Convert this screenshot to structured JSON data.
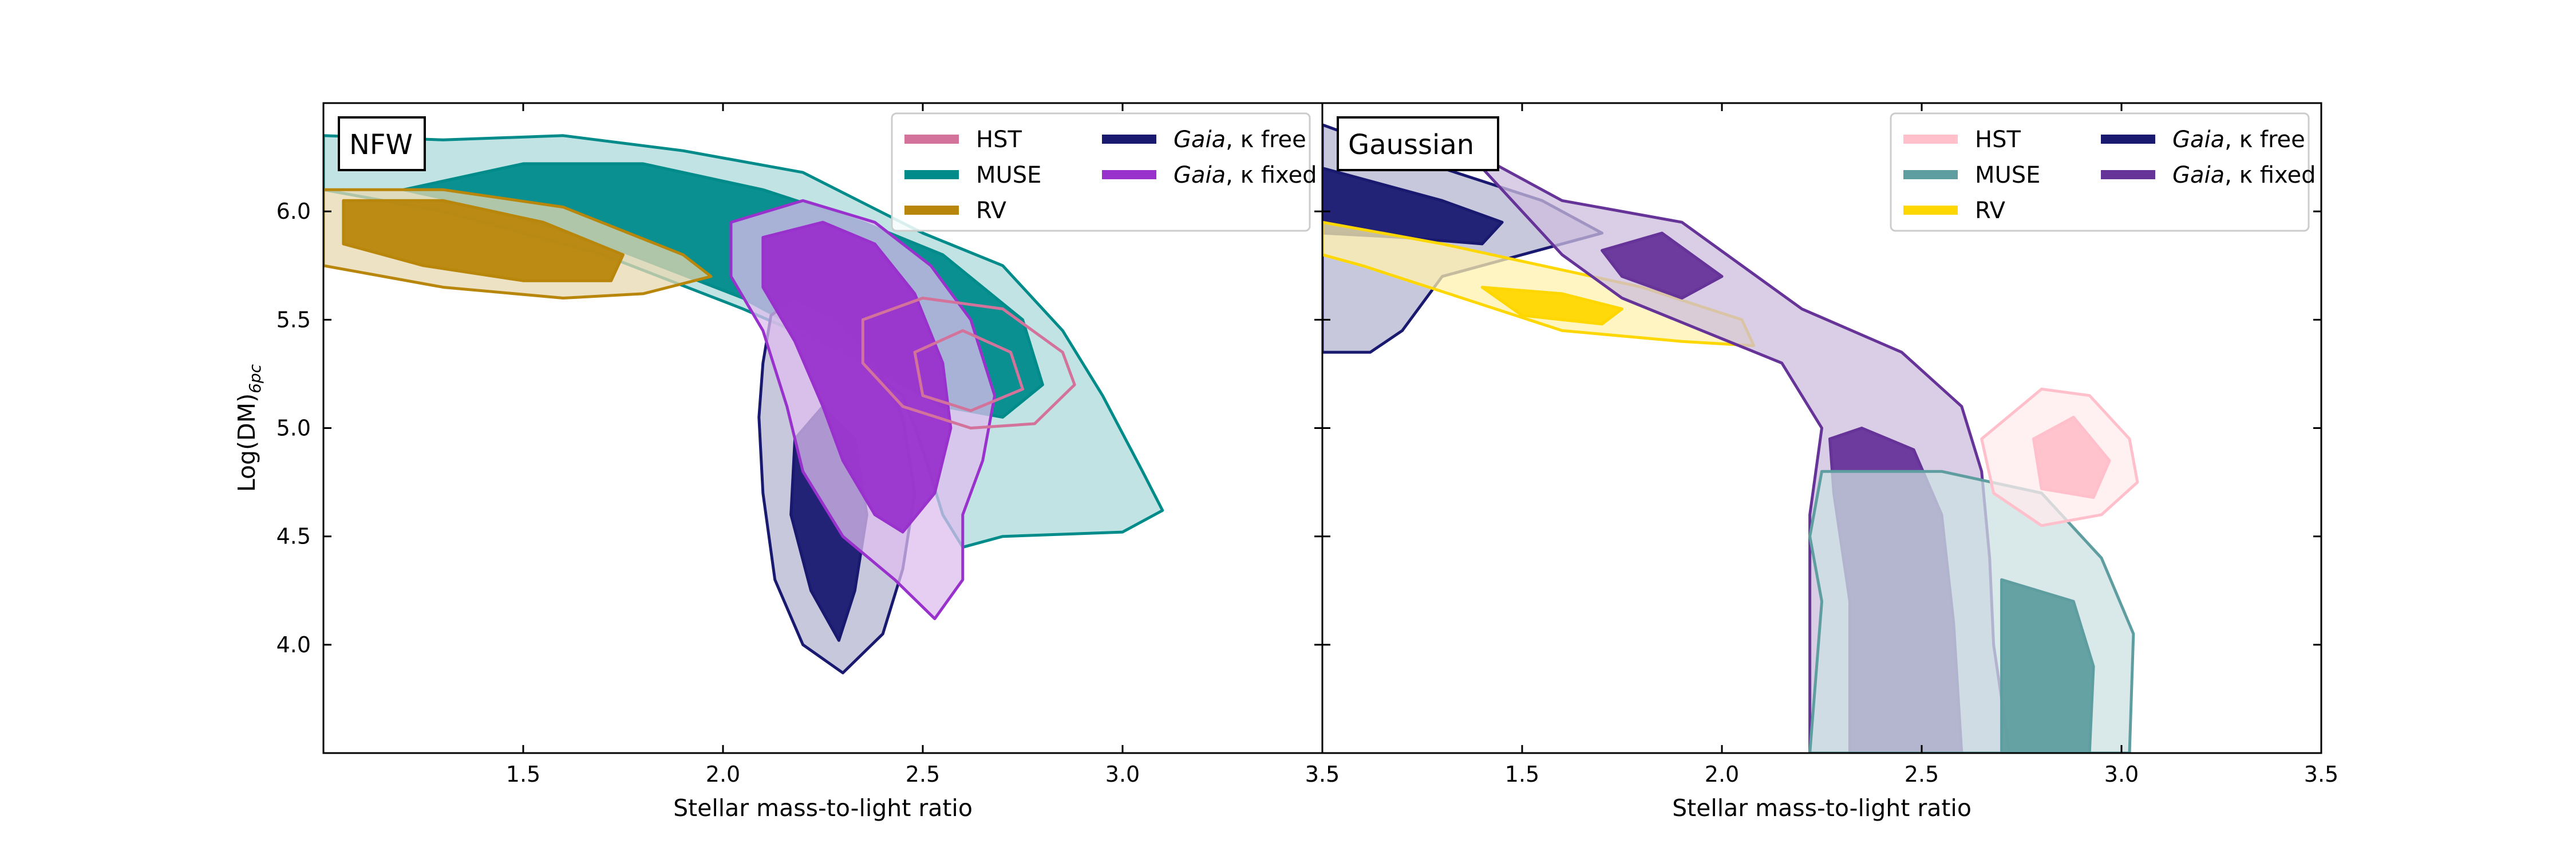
{
  "chart_data": [
    {
      "type": "contour",
      "title": "NFW",
      "xlabel": "Stellar mass-to-light ratio",
      "ylabel": "Log(DM)",
      "ylabel_sub": "6pc",
      "xlim": [
        1.0,
        3.5
      ],
      "ylim": [
        3.5,
        6.5
      ],
      "xticks": [
        "1.5",
        "2.0",
        "2.5",
        "3.0",
        "3.5"
      ],
      "yticks": [
        "4.0",
        "4.5",
        "5.0",
        "5.5",
        "6.0"
      ],
      "grid": false,
      "legend": {
        "position": "top-right",
        "columns": 2,
        "entries": [
          {
            "label": "HST",
            "color": "#d3739b",
            "italic_prefix": ""
          },
          {
            "label": "MUSE",
            "color": "#008b8b",
            "italic_prefix": ""
          },
          {
            "label": "RV",
            "color": "#b8860b",
            "italic_prefix": ""
          },
          {
            "label": ", κ free",
            "color": "#191970",
            "italic_prefix": "Gaia"
          },
          {
            "label": ", κ fixed",
            "color": "#9932cc",
            "italic_prefix": "Gaia"
          }
        ]
      },
      "series": [
        {
          "name": "MUSE",
          "color": "#008b8b",
          "filled": true,
          "outer": [
            [
              1.0,
              6.35
            ],
            [
              1.3,
              6.33
            ],
            [
              1.6,
              6.35
            ],
            [
              1.9,
              6.28
            ],
            [
              2.2,
              6.18
            ],
            [
              2.5,
              5.9
            ],
            [
              2.7,
              5.75
            ],
            [
              2.85,
              5.45
            ],
            [
              2.95,
              5.15
            ],
            [
              3.05,
              4.8
            ],
            [
              3.1,
              4.62
            ],
            [
              3.0,
              4.52
            ],
            [
              2.7,
              4.5
            ],
            [
              2.6,
              4.45
            ],
            [
              2.55,
              4.6
            ],
            [
              2.5,
              4.9
            ],
            [
              2.45,
              5.15
            ],
            [
              2.3,
              5.35
            ],
            [
              2.05,
              5.55
            ],
            [
              1.7,
              5.8
            ],
            [
              1.3,
              6.0
            ],
            [
              1.0,
              6.1
            ]
          ],
          "inner": [
            [
              1.2,
              6.1
            ],
            [
              1.5,
              6.22
            ],
            [
              1.8,
              6.22
            ],
            [
              2.1,
              6.1
            ],
            [
              2.35,
              5.95
            ],
            [
              2.55,
              5.8
            ],
            [
              2.75,
              5.5
            ],
            [
              2.8,
              5.2
            ],
            [
              2.7,
              5.05
            ],
            [
              2.55,
              5.1
            ],
            [
              2.45,
              5.2
            ],
            [
              2.3,
              5.35
            ],
            [
              2.05,
              5.6
            ],
            [
              1.7,
              5.85
            ],
            [
              1.4,
              6.02
            ]
          ]
        },
        {
          "name": "RV",
          "color": "#b8860b",
          "filled": true,
          "outer": [
            [
              1.0,
              6.1
            ],
            [
              1.3,
              6.1
            ],
            [
              1.6,
              6.02
            ],
            [
              1.9,
              5.8
            ],
            [
              1.97,
              5.7
            ],
            [
              1.8,
              5.62
            ],
            [
              1.6,
              5.6
            ],
            [
              1.3,
              5.65
            ],
            [
              1.0,
              5.75
            ]
          ],
          "inner": [
            [
              1.05,
              6.05
            ],
            [
              1.3,
              6.05
            ],
            [
              1.55,
              5.95
            ],
            [
              1.75,
              5.8
            ],
            [
              1.72,
              5.68
            ],
            [
              1.5,
              5.68
            ],
            [
              1.25,
              5.75
            ],
            [
              1.05,
              5.85
            ]
          ]
        },
        {
          "name": "Gaia, κ free",
          "color": "#191970",
          "filled": true,
          "outer": [
            [
              2.12,
              5.52
            ],
            [
              2.18,
              5.6
            ],
            [
              2.28,
              5.5
            ],
            [
              2.38,
              5.3
            ],
            [
              2.45,
              5.05
            ],
            [
              2.48,
              4.7
            ],
            [
              2.45,
              4.35
            ],
            [
              2.4,
              4.05
            ],
            [
              2.3,
              3.87
            ],
            [
              2.2,
              4.0
            ],
            [
              2.13,
              4.3
            ],
            [
              2.1,
              4.7
            ],
            [
              2.09,
              5.05
            ],
            [
              2.1,
              5.3
            ]
          ],
          "inner": [
            [
              2.18,
              4.95
            ],
            [
              2.25,
              5.1
            ],
            [
              2.33,
              4.95
            ],
            [
              2.36,
              4.6
            ],
            [
              2.33,
              4.25
            ],
            [
              2.29,
              4.02
            ],
            [
              2.22,
              4.25
            ],
            [
              2.17,
              4.6
            ]
          ]
        },
        {
          "name": "Gaia, κ fixed",
          "color": "#9932cc",
          "filled": true,
          "outer": [
            [
              2.02,
              5.95
            ],
            [
              2.2,
              6.05
            ],
            [
              2.38,
              5.95
            ],
            [
              2.52,
              5.75
            ],
            [
              2.62,
              5.5
            ],
            [
              2.68,
              5.15
            ],
            [
              2.65,
              4.85
            ],
            [
              2.6,
              4.6
            ],
            [
              2.6,
              4.3
            ],
            [
              2.53,
              4.12
            ],
            [
              2.43,
              4.3
            ],
            [
              2.3,
              4.5
            ],
            [
              2.2,
              4.8
            ],
            [
              2.16,
              5.1
            ],
            [
              2.1,
              5.45
            ],
            [
              2.02,
              5.7
            ]
          ],
          "inner": [
            [
              2.1,
              5.88
            ],
            [
              2.25,
              5.95
            ],
            [
              2.38,
              5.85
            ],
            [
              2.48,
              5.62
            ],
            [
              2.55,
              5.3
            ],
            [
              2.57,
              5.0
            ],
            [
              2.53,
              4.7
            ],
            [
              2.45,
              4.52
            ],
            [
              2.38,
              4.6
            ],
            [
              2.3,
              4.85
            ],
            [
              2.25,
              5.1
            ],
            [
              2.18,
              5.4
            ],
            [
              2.1,
              5.65
            ]
          ]
        },
        {
          "name": "HST",
          "color": "#d3739b",
          "filled": false,
          "outer": [
            [
              2.35,
              5.5
            ],
            [
              2.5,
              5.6
            ],
            [
              2.7,
              5.55
            ],
            [
              2.85,
              5.35
            ],
            [
              2.88,
              5.2
            ],
            [
              2.78,
              5.02
            ],
            [
              2.62,
              5.0
            ],
            [
              2.45,
              5.1
            ],
            [
              2.35,
              5.3
            ]
          ],
          "inner": [
            [
              2.48,
              5.35
            ],
            [
              2.6,
              5.45
            ],
            [
              2.72,
              5.35
            ],
            [
              2.75,
              5.18
            ],
            [
              2.62,
              5.08
            ],
            [
              2.5,
              5.15
            ]
          ]
        }
      ]
    },
    {
      "type": "contour",
      "title": "Gaussian",
      "xlabel": "Stellar mass-to-light ratio",
      "xlim": [
        1.0,
        3.5
      ],
      "ylim": [
        3.5,
        6.5
      ],
      "xticks": [
        "3.5",
        "1.5",
        "2.0",
        "2.5",
        "3.0",
        "3.5"
      ],
      "grid": false,
      "legend": {
        "position": "top-right",
        "columns": 2,
        "entries": [
          {
            "label": "HST",
            "color": "#ffc0cb",
            "italic_prefix": ""
          },
          {
            "label": "MUSE",
            "color": "#5f9ea0",
            "italic_prefix": ""
          },
          {
            "label": "RV",
            "color": "#ffd700",
            "italic_prefix": ""
          },
          {
            "label": ", κ free",
            "color": "#191970",
            "italic_prefix": "Gaia"
          },
          {
            "label": ", κ fixed",
            "color": "#663399",
            "italic_prefix": "Gaia"
          }
        ]
      },
      "series": [
        {
          "name": "Gaia, κ free",
          "color": "#191970",
          "filled": true,
          "outer": [
            [
              1.0,
              6.4
            ],
            [
              1.3,
              6.2
            ],
            [
              1.55,
              6.05
            ],
            [
              1.7,
              5.9
            ],
            [
              1.5,
              5.8
            ],
            [
              1.3,
              5.7
            ],
            [
              1.2,
              5.45
            ],
            [
              1.12,
              5.35
            ],
            [
              1.0,
              5.35
            ]
          ],
          "inner": [
            [
              1.0,
              6.2
            ],
            [
              1.3,
              6.05
            ],
            [
              1.45,
              5.95
            ],
            [
              1.4,
              5.85
            ],
            [
              1.2,
              5.88
            ],
            [
              1.0,
              5.9
            ]
          ]
        },
        {
          "name": "RV",
          "color": "#ffd700",
          "filled": true,
          "outer": [
            [
              1.0,
              5.95
            ],
            [
              1.3,
              5.85
            ],
            [
              1.55,
              5.75
            ],
            [
              1.8,
              5.65
            ],
            [
              2.05,
              5.5
            ],
            [
              2.08,
              5.38
            ],
            [
              1.9,
              5.4
            ],
            [
              1.6,
              5.45
            ],
            [
              1.35,
              5.6
            ],
            [
              1.1,
              5.75
            ],
            [
              1.0,
              5.8
            ]
          ],
          "inner": [
            [
              1.4,
              5.65
            ],
            [
              1.6,
              5.62
            ],
            [
              1.75,
              5.55
            ],
            [
              1.7,
              5.48
            ],
            [
              1.5,
              5.52
            ]
          ]
        },
        {
          "name": "Gaia, κ fixed",
          "color": "#663399",
          "filled": true,
          "outer": [
            [
              1.35,
              6.3
            ],
            [
              1.6,
              6.05
            ],
            [
              1.9,
              5.95
            ],
            [
              2.05,
              5.75
            ],
            [
              2.2,
              5.55
            ],
            [
              2.45,
              5.35
            ],
            [
              2.6,
              5.1
            ],
            [
              2.65,
              4.8
            ],
            [
              2.67,
              4.4
            ],
            [
              2.68,
              4.0
            ],
            [
              2.72,
              3.5
            ],
            [
              2.22,
              3.5
            ],
            [
              2.22,
              4.0
            ],
            [
              2.22,
              4.6
            ],
            [
              2.25,
              5.0
            ],
            [
              2.15,
              5.3
            ],
            [
              1.95,
              5.45
            ],
            [
              1.75,
              5.6
            ],
            [
              1.6,
              5.8
            ],
            [
              1.5,
              6.0
            ]
          ],
          "inner": [
            [
              1.7,
              5.82
            ],
            [
              1.85,
              5.9
            ],
            [
              2.0,
              5.7
            ],
            [
              1.9,
              5.6
            ],
            [
              1.75,
              5.7
            ]
          ],
          "inner2": [
            [
              2.35,
              5.0
            ],
            [
              2.48,
              4.9
            ],
            [
              2.55,
              4.6
            ],
            [
              2.58,
              4.1
            ],
            [
              2.6,
              3.5
            ],
            [
              2.32,
              3.5
            ],
            [
              2.32,
              4.2
            ],
            [
              2.28,
              4.7
            ],
            [
              2.27,
              4.95
            ]
          ]
        },
        {
          "name": "MUSE",
          "color": "#5f9ea0",
          "filled": true,
          "outer": [
            [
              2.25,
              4.8
            ],
            [
              2.55,
              4.8
            ],
            [
              2.8,
              4.7
            ],
            [
              2.95,
              4.4
            ],
            [
              3.03,
              4.05
            ],
            [
              3.02,
              3.5
            ],
            [
              2.22,
              3.5
            ],
            [
              2.25,
              4.2
            ],
            [
              2.22,
              4.5
            ]
          ],
          "inner": [
            [
              2.7,
              4.3
            ],
            [
              2.88,
              4.2
            ],
            [
              2.93,
              3.9
            ],
            [
              2.92,
              3.5
            ],
            [
              2.7,
              3.5
            ]
          ]
        },
        {
          "name": "HST",
          "color": "#ffc0cb",
          "filled": true,
          "outer": [
            [
              2.65,
              4.95
            ],
            [
              2.8,
              5.18
            ],
            [
              2.92,
              5.15
            ],
            [
              3.02,
              4.95
            ],
            [
              3.04,
              4.75
            ],
            [
              2.95,
              4.6
            ],
            [
              2.8,
              4.55
            ],
            [
              2.68,
              4.7
            ]
          ],
          "inner": [
            [
              2.78,
              4.95
            ],
            [
              2.88,
              5.05
            ],
            [
              2.97,
              4.85
            ],
            [
              2.93,
              4.68
            ],
            [
              2.8,
              4.72
            ]
          ]
        }
      ]
    }
  ]
}
